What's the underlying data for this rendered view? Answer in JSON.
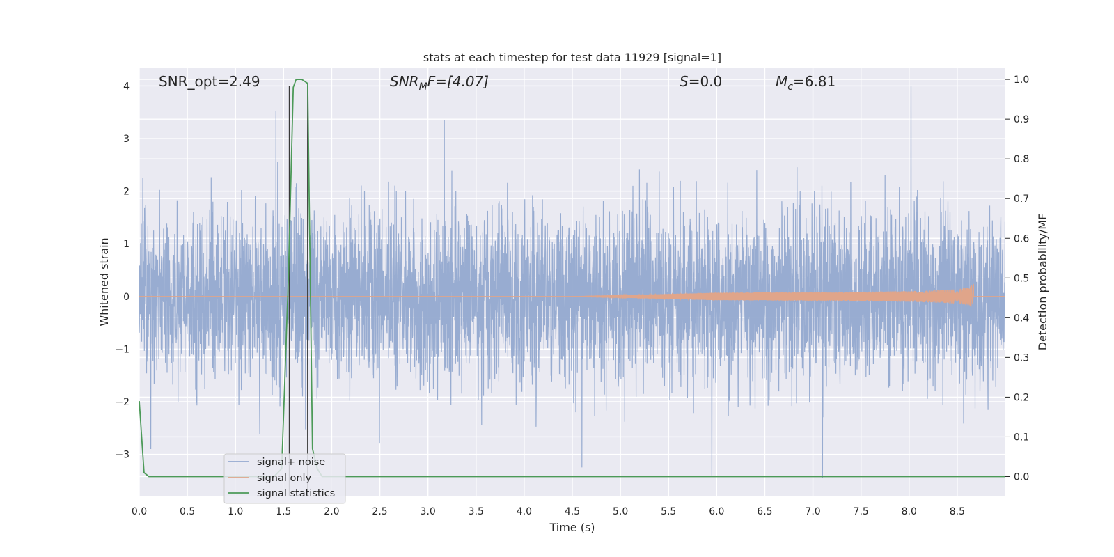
{
  "chart_data": {
    "type": "line",
    "title": "stats at each timestep for test data 11929 [signal=1]",
    "xlabel": "Time (s)",
    "ylabel_left": "Whitened strain",
    "ylabel_right": "Detection probability/MF",
    "xlim": [
      0.0,
      9.0
    ],
    "ylim_left": [
      -3.8,
      4.35
    ],
    "ylim_right": [
      -0.05,
      1.03
    ],
    "x_ticks": [
      "0.0",
      "0.5",
      "1.0",
      "1.5",
      "2.0",
      "2.5",
      "3.0",
      "3.5",
      "4.0",
      "4.5",
      "5.0",
      "5.5",
      "6.0",
      "6.5",
      "7.0",
      "7.5",
      "8.0",
      "8.5"
    ],
    "y_left_ticks": [
      "4",
      "3",
      "2",
      "1",
      "0",
      "−1",
      "−2",
      "−3"
    ],
    "y_right_ticks": [
      "1.0",
      "0.9",
      "0.8",
      "0.7",
      "0.6",
      "0.5",
      "0.4",
      "0.3",
      "0.2",
      "0.1",
      "0.0"
    ],
    "grid": true,
    "legend_placement": "lower-left",
    "annotations": {
      "snr_opt": "SNR_opt=2.49",
      "snr_mf_main": "SNR",
      "snr_mf_sub": "M",
      "snr_mf_rest": "F=[4.07]",
      "s_main": "S",
      "s_rest": "=0.0",
      "mc_main": "M",
      "mc_sub": "c",
      "mc_rest": "=6.81"
    },
    "series": [
      {
        "name": "signal+ noise",
        "axis": "left",
        "color": "#94a9cf",
        "description_values": "noise-like whitened strain, mostly within [-2, 2] with peaks up to 4.0 near t=8.0 and down to -3.5 near t=7.1"
      },
      {
        "name": "signal only",
        "axis": "left",
        "color": "#e0a58a",
        "chirp": {
          "start": 4.5,
          "end": 8.67,
          "max_amplitude": 0.25
        }
      },
      {
        "name": "signal statistics",
        "axis": "right",
        "color": "#4c9a58",
        "x": [
          0.0,
          0.05,
          0.1,
          0.15,
          1.4,
          1.48,
          1.55,
          1.6,
          1.63,
          1.69,
          1.75,
          1.8,
          1.85,
          1.9,
          9.0
        ],
        "y": [
          0.19,
          0.01,
          0.0,
          0.0,
          0.0,
          0.02,
          0.5,
          0.98,
          1.0,
          1.0,
          0.99,
          0.07,
          0.02,
          0.0,
          0.0
        ]
      }
    ],
    "vlines": [
      {
        "x": 1.56,
        "y_range": [
          -3.8,
          4.0
        ],
        "color": "#3a3a3a"
      },
      {
        "x": 1.75,
        "y_range": [
          -3.8,
          4.0
        ],
        "color": "#3a3a3a"
      }
    ],
    "noise_extremes": [
      {
        "x": 8.02,
        "y": 4.0
      },
      {
        "x": 3.17,
        "y": 3.35
      },
      {
        "x": 1.42,
        "y": 3.52
      },
      {
        "x": 7.1,
        "y": -3.45
      },
      {
        "x": 5.95,
        "y": -3.4
      },
      {
        "x": 4.6,
        "y": -3.25
      },
      {
        "x": 0.12,
        "y": -2.9
      }
    ]
  }
}
